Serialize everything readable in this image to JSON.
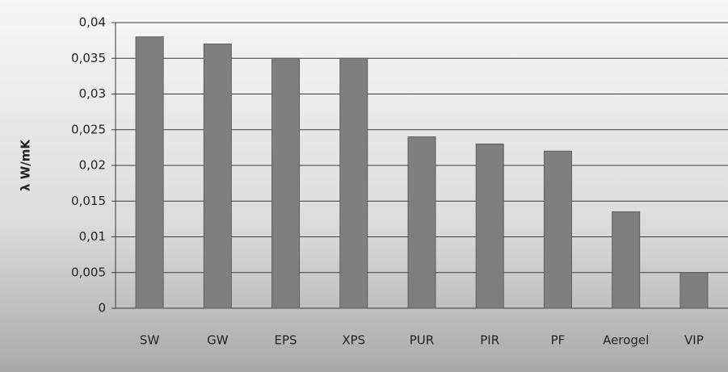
{
  "chart_data": {
    "type": "bar",
    "y_label": "λ W/mK",
    "categories": [
      "SW",
      "GW",
      "EPS",
      "XPS",
      "PUR",
      "PIR",
      "PF",
      "Aerogel",
      "VIP"
    ],
    "values": [
      0.038,
      0.037,
      0.035,
      0.035,
      0.024,
      0.023,
      0.022,
      0.0135,
      0.005
    ],
    "color": "#7f7f7f",
    "ylim": [
      0,
      0.04
    ],
    "yticks": [
      0,
      {
        "value": 0.005,
        "label": "0,005"
      },
      {
        "value": 0.01,
        "label": "0,01"
      },
      {
        "value": 0.015,
        "label": "0,015"
      },
      {
        "value": 0.02,
        "label": "0,02"
      },
      {
        "value": 0.025,
        "label": "0,025"
      },
      {
        "value": 0.03,
        "label": "0,03"
      },
      {
        "value": 0.035,
        "label": "0,035"
      },
      {
        "value": 0.04,
        "label": "0,04"
      }
    ],
    "grid": true
  }
}
